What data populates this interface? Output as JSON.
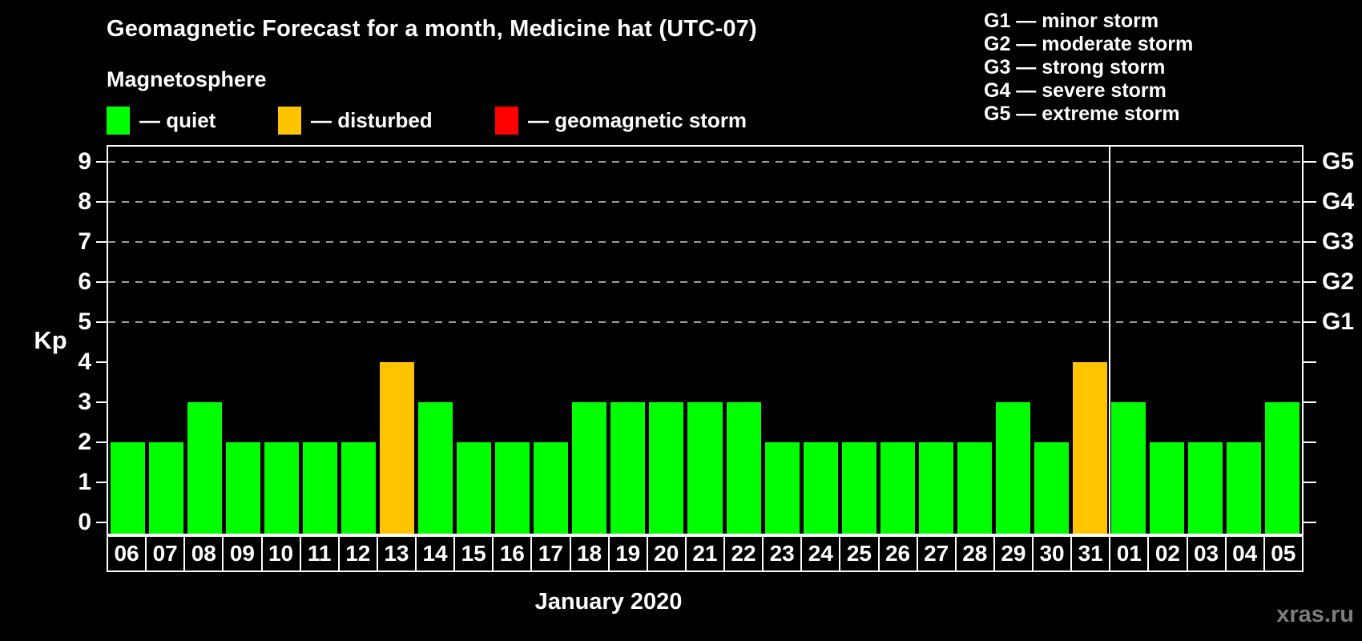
{
  "title": "Geomagnetic Forecast for a month, Medicine hat (UTC-07)",
  "subtitle": "Magnetosphere",
  "legend": {
    "items": [
      {
        "key": "quiet",
        "label": "— quiet",
        "color": "#00ff00"
      },
      {
        "key": "disturbed",
        "label": "— disturbed",
        "color": "#ffc300"
      },
      {
        "key": "storm",
        "label": "— geomagnetic storm",
        "color": "#ff0000"
      }
    ]
  },
  "g_legend": [
    "G1 — minor storm",
    "G2 — moderate storm",
    "G3 — strong storm",
    "G4 — severe storm",
    "G5 — extreme storm"
  ],
  "watermark": "xras.ru",
  "colors": {
    "quiet": "#00ff00",
    "disturbed": "#ffc300",
    "storm": "#ff0000",
    "grid": "#9b9b9b",
    "axis": "#ffffff",
    "background": "#000000",
    "watermark": "#7d7d7d"
  },
  "chart_data": {
    "type": "bar",
    "title": "Geomagnetic Forecast for a month, Medicine hat (UTC-07)",
    "xlabel": "January 2020",
    "ylabel": "Kp",
    "ylim": [
      0,
      9
    ],
    "yticks": [
      0,
      1,
      2,
      3,
      4,
      5,
      6,
      7,
      8,
      9
    ],
    "grid": "dashed horizontal lines at Kp 5-9 only",
    "gridlines_at": [
      5,
      6,
      7,
      8,
      9
    ],
    "right_axis_labels": [
      {
        "label": "G1",
        "kp": 5
      },
      {
        "label": "G2",
        "kp": 6
      },
      {
        "label": "G3",
        "kp": 7
      },
      {
        "label": "G4",
        "kp": 8
      },
      {
        "label": "G5",
        "kp": 9
      }
    ],
    "month_label": "January 2020",
    "month_boundary_after_index": 25,
    "categories": [
      "06",
      "07",
      "08",
      "09",
      "10",
      "11",
      "12",
      "13",
      "14",
      "15",
      "16",
      "17",
      "18",
      "19",
      "20",
      "21",
      "22",
      "23",
      "24",
      "25",
      "26",
      "27",
      "28",
      "29",
      "30",
      "31",
      "01",
      "02",
      "03",
      "04",
      "05"
    ],
    "values": [
      2,
      2,
      3,
      2,
      2,
      2,
      2,
      4,
      3,
      2,
      2,
      2,
      3,
      3,
      3,
      3,
      3,
      2,
      2,
      2,
      2,
      2,
      2,
      3,
      2,
      4,
      3,
      2,
      2,
      2,
      3
    ],
    "days": [
      {
        "day": "06",
        "kp": 2,
        "status": "quiet"
      },
      {
        "day": "07",
        "kp": 2,
        "status": "quiet"
      },
      {
        "day": "08",
        "kp": 3,
        "status": "quiet"
      },
      {
        "day": "09",
        "kp": 2,
        "status": "quiet"
      },
      {
        "day": "10",
        "kp": 2,
        "status": "quiet"
      },
      {
        "day": "11",
        "kp": 2,
        "status": "quiet"
      },
      {
        "day": "12",
        "kp": 2,
        "status": "quiet"
      },
      {
        "day": "13",
        "kp": 4,
        "status": "disturbed"
      },
      {
        "day": "14",
        "kp": 3,
        "status": "quiet"
      },
      {
        "day": "15",
        "kp": 2,
        "status": "quiet"
      },
      {
        "day": "16",
        "kp": 2,
        "status": "quiet"
      },
      {
        "day": "17",
        "kp": 2,
        "status": "quiet"
      },
      {
        "day": "18",
        "kp": 3,
        "status": "quiet"
      },
      {
        "day": "19",
        "kp": 3,
        "status": "quiet"
      },
      {
        "day": "20",
        "kp": 3,
        "status": "quiet"
      },
      {
        "day": "21",
        "kp": 3,
        "status": "quiet"
      },
      {
        "day": "22",
        "kp": 3,
        "status": "quiet"
      },
      {
        "day": "23",
        "kp": 2,
        "status": "quiet"
      },
      {
        "day": "24",
        "kp": 2,
        "status": "quiet"
      },
      {
        "day": "25",
        "kp": 2,
        "status": "quiet"
      },
      {
        "day": "26",
        "kp": 2,
        "status": "quiet"
      },
      {
        "day": "27",
        "kp": 2,
        "status": "quiet"
      },
      {
        "day": "28",
        "kp": 2,
        "status": "quiet"
      },
      {
        "day": "29",
        "kp": 3,
        "status": "quiet"
      },
      {
        "day": "30",
        "kp": 2,
        "status": "quiet"
      },
      {
        "day": "31",
        "kp": 4,
        "status": "disturbed"
      },
      {
        "day": "01",
        "kp": 3,
        "status": "quiet"
      },
      {
        "day": "02",
        "kp": 2,
        "status": "quiet"
      },
      {
        "day": "03",
        "kp": 2,
        "status": "quiet"
      },
      {
        "day": "04",
        "kp": 2,
        "status": "quiet"
      },
      {
        "day": "05",
        "kp": 3,
        "status": "quiet"
      }
    ]
  }
}
